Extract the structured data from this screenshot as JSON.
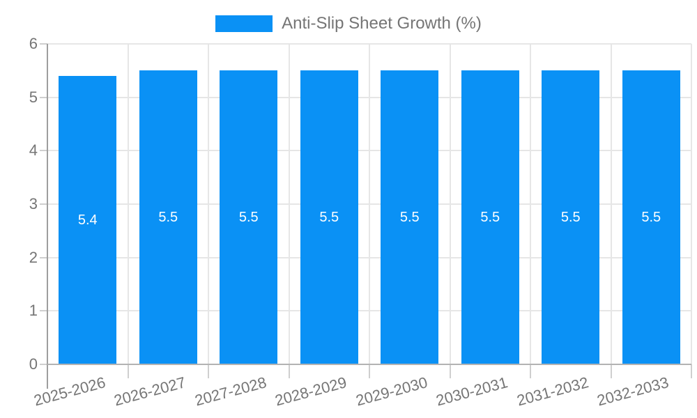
{
  "page": {
    "background": "#ffffff"
  },
  "legend": {
    "label": "Anti-Slip Sheet Growth (%)",
    "position": "top"
  },
  "chart_data": {
    "type": "bar",
    "title": "Anti-Slip Sheet Growth (%)",
    "categories": [
      "2025-2026",
      "2026-2027",
      "2027-2028",
      "2028-2029",
      "2029-2030",
      "2030-2031",
      "2031-2032",
      "2032-2033"
    ],
    "series": [
      {
        "name": "Anti-Slip Sheet Growth (%)",
        "values": [
          5.4,
          5.5,
          5.5,
          5.5,
          5.5,
          5.5,
          5.5,
          5.5
        ]
      }
    ],
    "values": [
      5.4,
      5.5,
      5.5,
      5.5,
      5.5,
      5.5,
      5.5,
      5.5
    ],
    "data_labels": [
      "5.4",
      "5.5",
      "5.5",
      "5.5",
      "5.5",
      "5.5",
      "5.5",
      "5.5"
    ],
    "xlabel": "",
    "ylabel": "",
    "ylim": [
      0,
      6
    ],
    "yticks": [
      0,
      1,
      2,
      3,
      4,
      5,
      6
    ],
    "grid": "horizontal and vertical category boundaries",
    "legend_position": "top-center",
    "x_label_rotation_deg": -15,
    "colors": {
      "bar": "#0a91f5",
      "data_label": "#ffffff",
      "axis_text": "#757575",
      "gridline": "#e6e6e6",
      "axis_line": "#9e9e9e",
      "baseline": "#b3b3b3",
      "tick": "#cfcfcf"
    }
  }
}
